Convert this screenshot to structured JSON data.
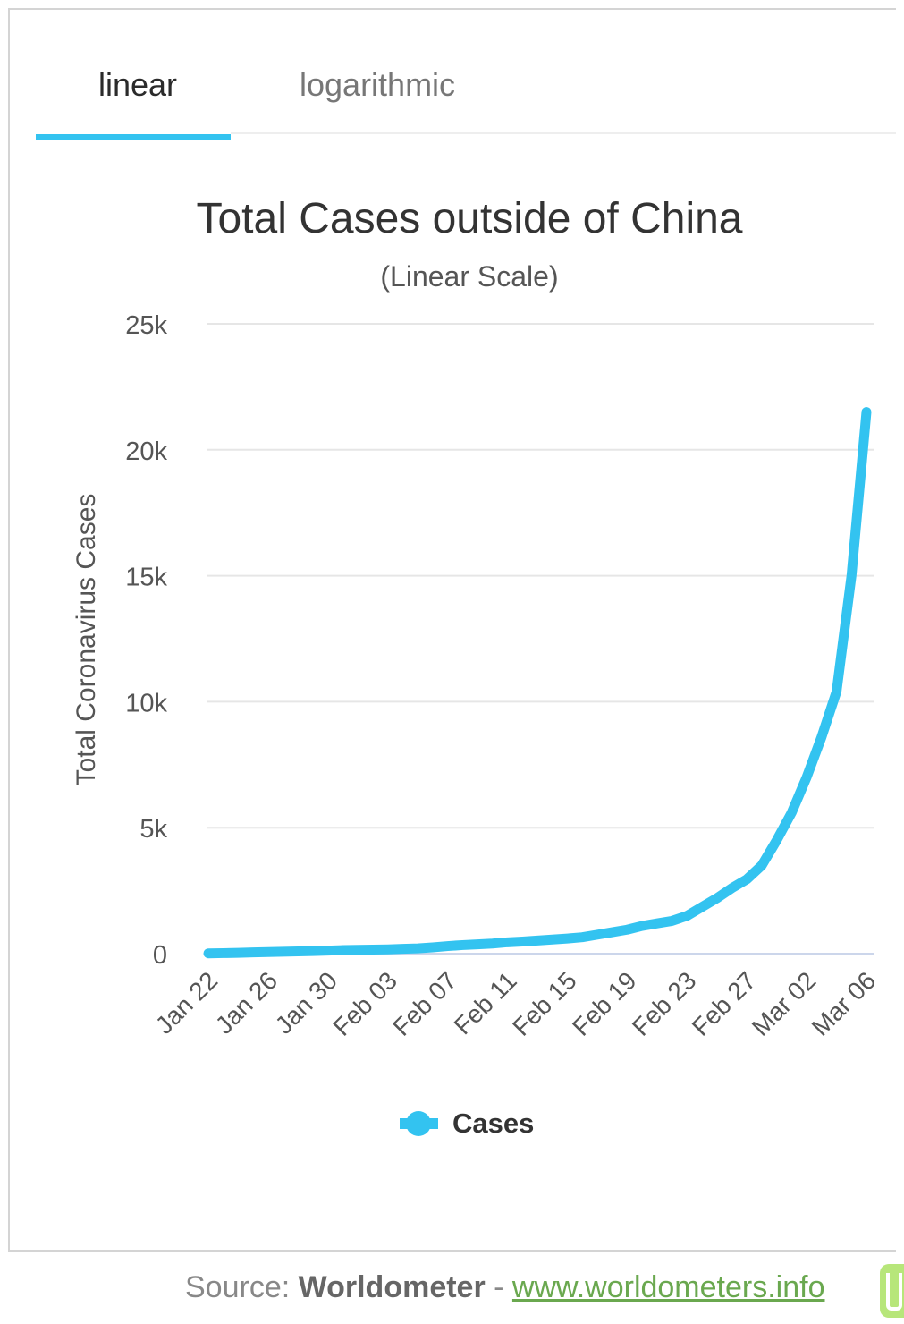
{
  "tabs": [
    {
      "label": "linear",
      "active": true
    },
    {
      "label": "logarithmic",
      "active": false
    }
  ],
  "source": {
    "prefix": "Source: ",
    "name": "Worldometer",
    "separator": " - ",
    "link": "www.worldometers.info"
  },
  "chart_data": {
    "type": "line",
    "title": "Total Cases outside of China",
    "subtitle": "(Linear Scale)",
    "ylabel": "Total Coronavirus Cases",
    "xlabel": "",
    "ylim": [
      0,
      25000
    ],
    "yticks": [
      0,
      5000,
      10000,
      15000,
      20000,
      25000
    ],
    "ytick_labels": [
      "0",
      "5k",
      "10k",
      "15k",
      "20k",
      "25k"
    ],
    "xtick_labels": [
      "Jan 22",
      "Jan 26",
      "Jan 30",
      "Feb 03",
      "Feb 07",
      "Feb 11",
      "Feb 15",
      "Feb 19",
      "Feb 23",
      "Feb 27",
      "Mar 02",
      "Mar 06"
    ],
    "grid": true,
    "legend_position": "bottom",
    "series": [
      {
        "name": "Cases",
        "color": "#33c3f0",
        "x": [
          "Jan 22",
          "Jan 23",
          "Jan 24",
          "Jan 25",
          "Jan 26",
          "Jan 27",
          "Jan 28",
          "Jan 29",
          "Jan 30",
          "Jan 31",
          "Feb 01",
          "Feb 02",
          "Feb 03",
          "Feb 04",
          "Feb 05",
          "Feb 06",
          "Feb 07",
          "Feb 08",
          "Feb 09",
          "Feb 10",
          "Feb 11",
          "Feb 12",
          "Feb 13",
          "Feb 14",
          "Feb 15",
          "Feb 16",
          "Feb 17",
          "Feb 18",
          "Feb 19",
          "Feb 20",
          "Feb 21",
          "Feb 22",
          "Feb 23",
          "Feb 24",
          "Feb 25",
          "Feb 26",
          "Feb 27",
          "Feb 28",
          "Feb 29",
          "Mar 01",
          "Mar 02",
          "Mar 03",
          "Mar 04",
          "Mar 05",
          "Mar 06"
        ],
        "values": [
          10,
          20,
          30,
          50,
          60,
          75,
          90,
          100,
          120,
          140,
          150,
          160,
          170,
          190,
          210,
          250,
          300,
          340,
          370,
          400,
          450,
          480,
          520,
          560,
          600,
          650,
          750,
          850,
          950,
          1100,
          1200,
          1300,
          1500,
          1850,
          2200,
          2600,
          2950,
          3500,
          4500,
          5600,
          7000,
          8600,
          10400,
          15000,
          21500
        ]
      }
    ]
  }
}
